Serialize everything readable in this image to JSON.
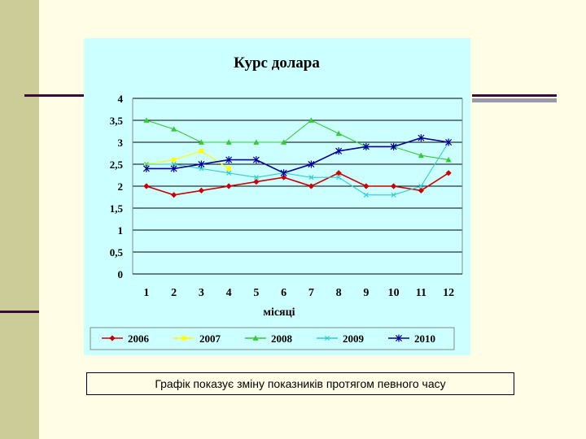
{
  "chart_data": {
    "type": "line",
    "title": "Курс долара",
    "xlabel": "місяці",
    "ylabel": "",
    "categories": [
      "1",
      "2",
      "3",
      "4",
      "5",
      "6",
      "7",
      "8",
      "9",
      "10",
      "11",
      "12"
    ],
    "ylim": [
      0,
      4
    ],
    "yticks": [
      "0",
      "0,5",
      "1",
      "1,5",
      "2",
      "2,5",
      "3",
      "3,5",
      "4"
    ],
    "grid": true,
    "legend_position": "bottom",
    "series": [
      {
        "name": "2006",
        "color": "#cc0000",
        "marker": "diamond",
        "values": [
          2.0,
          1.8,
          1.9,
          2.0,
          2.1,
          2.2,
          2.0,
          2.3,
          2.0,
          2.0,
          1.9,
          2.3
        ]
      },
      {
        "name": "2007",
        "color": "#ffff00",
        "marker": "square",
        "values": [
          2.5,
          2.6,
          2.8,
          2.4,
          null,
          null,
          null,
          null,
          null,
          null,
          null,
          null
        ]
      },
      {
        "name": "2008",
        "color": "#33cc33",
        "marker": "triangle",
        "values": [
          3.5,
          3.3,
          3.0,
          3.0,
          3.0,
          3.0,
          3.5,
          3.2,
          2.9,
          2.9,
          2.7,
          2.6
        ]
      },
      {
        "name": "2009",
        "color": "#33cccc",
        "marker": "x",
        "values": [
          2.5,
          2.5,
          2.4,
          2.3,
          2.2,
          2.3,
          2.2,
          2.2,
          1.8,
          1.8,
          2.0,
          3.0
        ]
      },
      {
        "name": "2010",
        "color": "#000099",
        "marker": "star",
        "values": [
          2.4,
          2.4,
          2.5,
          2.6,
          2.6,
          2.3,
          2.5,
          2.8,
          2.9,
          2.9,
          3.1,
          3.0
        ]
      }
    ]
  },
  "caption": "Графік показує зміну показників протягом певного часу"
}
